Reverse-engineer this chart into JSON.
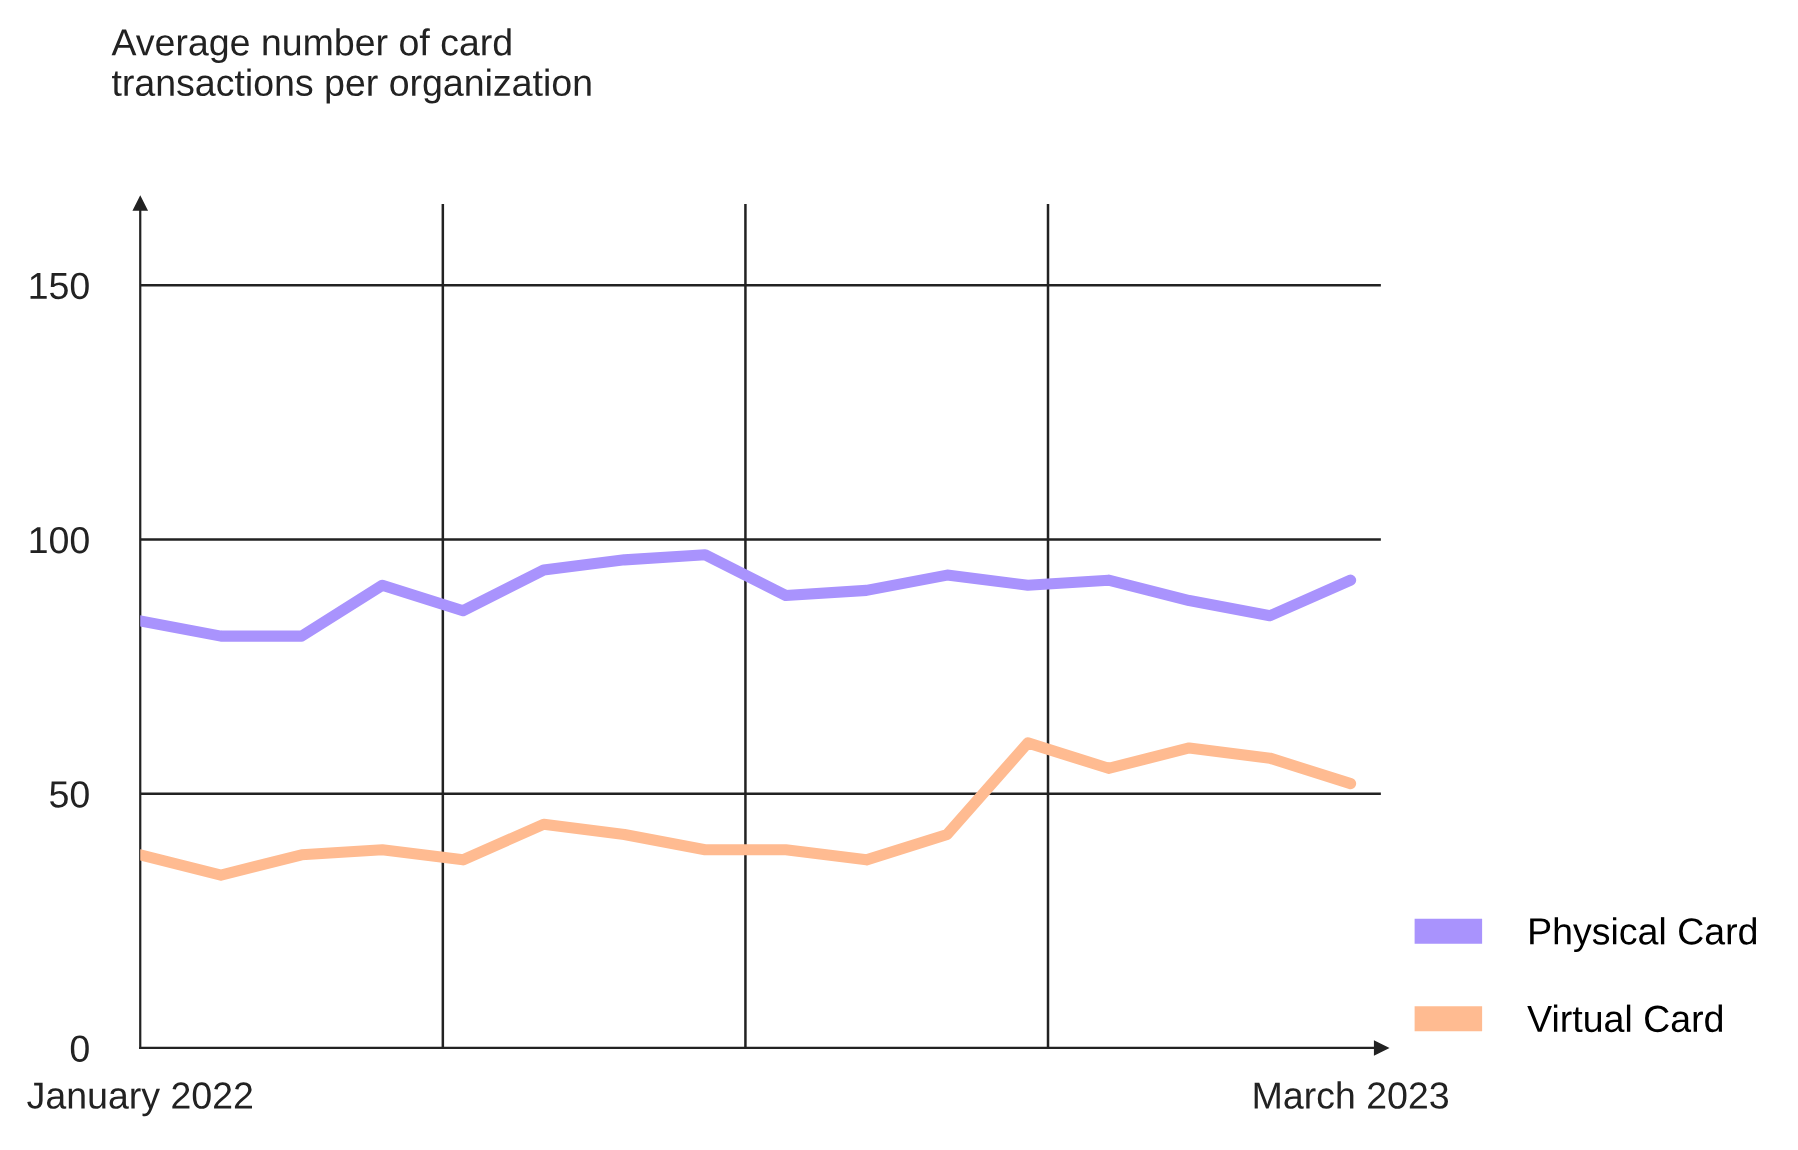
{
  "chart_data": {
    "type": "line",
    "ylabel": "Average number of card\ntransactions per organization",
    "categories": [
      "January 2022",
      null,
      null,
      null,
      null,
      null,
      null,
      null,
      null,
      null,
      null,
      null,
      null,
      null,
      null,
      "March 2023"
    ],
    "series": [
      {
        "name": "Physical Card",
        "color": "#a993fd",
        "values": [
          84,
          81,
          81,
          91,
          86,
          94,
          96,
          97,
          89,
          90,
          93,
          91,
          92,
          88,
          85,
          92
        ]
      },
      {
        "name": "Virtual Card",
        "color": "#ffbb91",
        "values": [
          38,
          34,
          38,
          39,
          37,
          44,
          42,
          39,
          39,
          37,
          42,
          60,
          55,
          59,
          57,
          52
        ]
      }
    ],
    "ylim": [
      0,
      166
    ],
    "yticks": [
      0,
      50,
      100,
      150
    ],
    "grid": "y",
    "legend": "bottom right",
    "marker": "none",
    "line_style": "solid"
  }
}
